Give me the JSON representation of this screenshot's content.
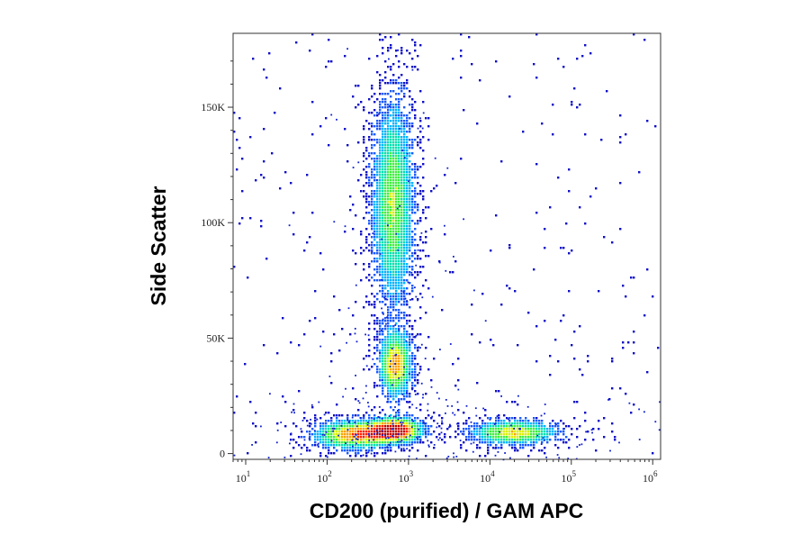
{
  "chart_data": {
    "type": "heatmap",
    "subtype": "flow-cytometry-density-dot-plot",
    "title": "",
    "xlabel": "CD200 (purified) / GAM APC",
    "ylabel": "Side Scatter",
    "x_scale": "log",
    "xlim": [
      7,
      1250000
    ],
    "ylim": [
      -2500,
      182000
    ],
    "x_ticks": [
      {
        "value": 10,
        "base": "10",
        "exp": "1"
      },
      {
        "value": 100,
        "base": "10",
        "exp": "2"
      },
      {
        "value": 1000,
        "base": "10",
        "exp": "3"
      },
      {
        "value": 10000,
        "base": "10",
        "exp": "4"
      },
      {
        "value": 100000,
        "base": "10",
        "exp": "5"
      },
      {
        "value": 1000000,
        "base": "10",
        "exp": "6"
      }
    ],
    "y_ticks": [
      {
        "value": 0,
        "label": "0"
      },
      {
        "value": 50000,
        "label": "50K"
      },
      {
        "value": 100000,
        "label": "100K"
      },
      {
        "value": 150000,
        "label": "150K"
      }
    ],
    "grid": false,
    "colormap": [
      "#1010c8",
      "#1a5aff",
      "#00b4ff",
      "#00e0b0",
      "#40f040",
      "#d8f000",
      "#ffa000",
      "#ff2000",
      "#c00000"
    ],
    "populations": [
      {
        "x_center": 650,
        "y_center": 108000,
        "x_spread_decades": 0.17,
        "y_spread": 30000,
        "density": 0.6
      },
      {
        "x_center": 700,
        "y_center": 38000,
        "x_spread_decades": 0.13,
        "y_spread": 9000,
        "density": 0.75
      },
      {
        "x_center": 700,
        "y_center": 10000,
        "x_spread_decades": 0.22,
        "y_spread": 3500,
        "density": 1.0
      },
      {
        "x_center": 200,
        "y_center": 8000,
        "x_spread_decades": 0.3,
        "y_spread": 4000,
        "density": 0.8
      },
      {
        "x_center": 20000,
        "y_center": 9000,
        "x_spread_decades": 0.35,
        "y_spread": 3500,
        "density": 0.7
      }
    ]
  }
}
